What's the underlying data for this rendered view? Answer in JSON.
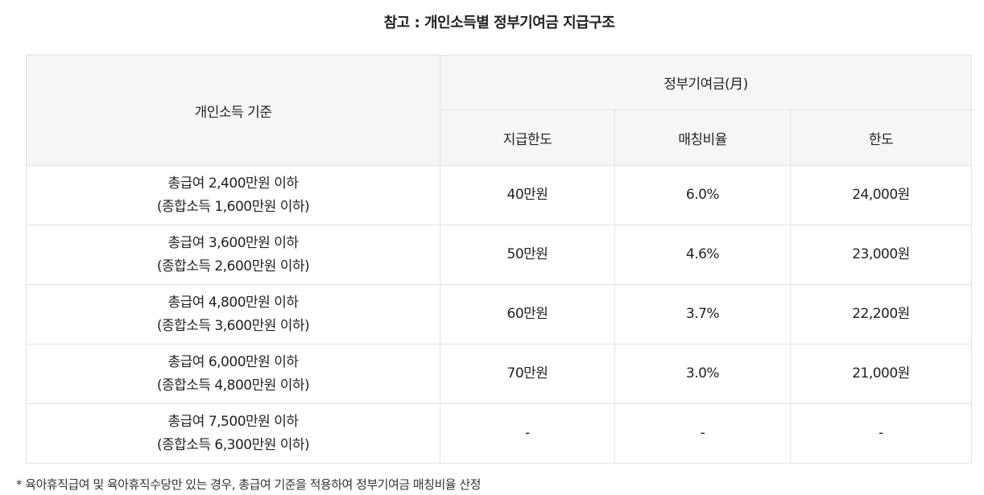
{
  "title": "참고 : 개인소득별 정부기여금 지급구조",
  "table": {
    "header": {
      "income_col": "개인소득 기준",
      "group": "정부기여금(月)",
      "cols": [
        "지급한도",
        "매칭비율",
        "한도"
      ]
    },
    "rows": [
      {
        "line1": "총급여 2,400만원 이하",
        "line2": "(종합소득 1,600만원 이하)",
        "limit": "40만원",
        "rate": "6.0%",
        "cap": "24,000원"
      },
      {
        "line1": "총급여 3,600만원 이하",
        "line2": "(종합소득 2,600만원 이하)",
        "limit": "50만원",
        "rate": "4.6%",
        "cap": "23,000원"
      },
      {
        "line1": "총급여 4,800만원 이하",
        "line2": "(종합소득 3,600만원 이하)",
        "limit": "60만원",
        "rate": "3.7%",
        "cap": "22,200원"
      },
      {
        "line1": "총급여 6,000만원 이하",
        "line2": "(종합소득 4,800만원 이하)",
        "limit": "70만원",
        "rate": "3.0%",
        "cap": "21,000원"
      },
      {
        "line1": "총급여 7,500만원 이하",
        "line2": "(종합소득 6,300만원 이하)",
        "limit": "-",
        "rate": "-",
        "cap": "-"
      }
    ]
  },
  "footnote": "* 육아휴직급여 및 육아휴직수당만 있는 경우, 총급여 기준을 적용하여 정부기여금 매칭비율 산정"
}
